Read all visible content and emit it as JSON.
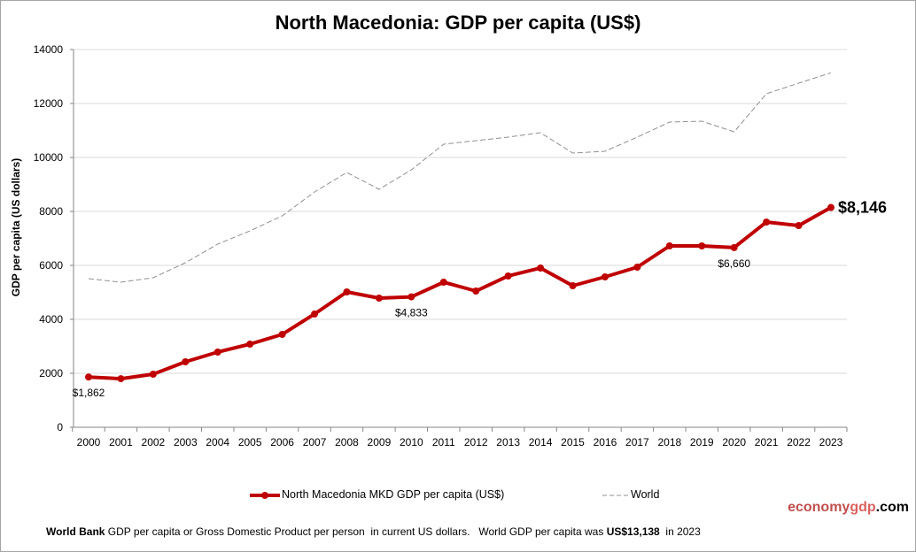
{
  "chart_data": {
    "type": "line",
    "title": "North Macedonia: GDP per capita (US$)",
    "ylabel": "GDP per capita (US dollars)",
    "xlabel": "",
    "ylim": [
      0,
      14000
    ],
    "yticks": [
      "0",
      "2000",
      "4000",
      "6000",
      "8000",
      "10000",
      "12000",
      "14000"
    ],
    "grid": true,
    "legend_position": "bottom",
    "categories": [
      "2000",
      "2001",
      "2002",
      "2003",
      "2004",
      "2005",
      "2006",
      "2007",
      "2008",
      "2009",
      "2010",
      "2011",
      "2012",
      "2013",
      "2014",
      "2015",
      "2016",
      "2017",
      "2018",
      "2019",
      "2020",
      "2021",
      "2022",
      "2023"
    ],
    "series": [
      {
        "name": "North Macedonia MKD GDP per capita (US$)",
        "color": "#c00000",
        "style": "solid-markers",
        "values": [
          1862,
          1800,
          1967,
          2426,
          2787,
          3082,
          3443,
          4197,
          5016,
          4787,
          4833,
          5377,
          5049,
          5607,
          5902,
          5246,
          5574,
          5934,
          6721,
          6721,
          6660,
          7607,
          7475,
          8146
        ]
      },
      {
        "name": "World",
        "color": "#909090",
        "style": "dashed",
        "values": [
          5508,
          5377,
          5541,
          6098,
          6787,
          7279,
          7836,
          8721,
          9443,
          8820,
          9541,
          10492,
          10623,
          10754,
          10918,
          10164,
          10230,
          10754,
          11311,
          11344,
          10951,
          12361,
          12754,
          13138
        ]
      }
    ],
    "annotations": [
      {
        "year": "2000",
        "text": "$1,862"
      },
      {
        "year": "2010",
        "text": "$4,833"
      },
      {
        "year": "2020",
        "text": "$6,660"
      },
      {
        "year": "2023",
        "text": "$8,146"
      }
    ]
  },
  "brand": {
    "part1": "economy",
    "part2": "gdp",
    "part3": ".com",
    "color1": "#c0504d",
    "color2": "#d9625f"
  },
  "footer": {
    "bold1": "World Bank",
    "text1": " GDP per capita or Gross Domestic Product per person  in current US dollars.   World GDP per capita was ",
    "bold2": "US$13,138",
    "text2": "  in 2023"
  }
}
